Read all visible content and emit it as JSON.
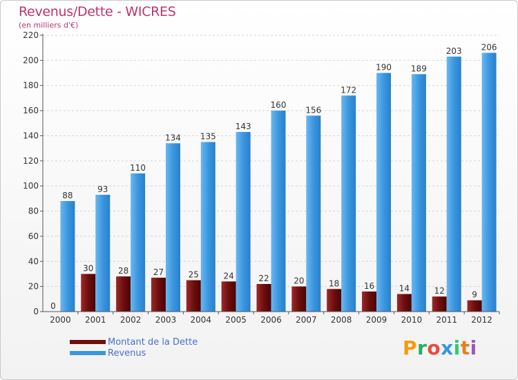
{
  "chart_data": {
    "type": "bar",
    "title": "Revenus/Dette - WICRES",
    "subtitle": "(en milliers d'€)",
    "categories": [
      "2000",
      "2001",
      "2002",
      "2003",
      "2004",
      "2005",
      "2006",
      "2007",
      "2008",
      "2009",
      "2010",
      "2011",
      "2012"
    ],
    "series": [
      {
        "name": "Montant de la Dette",
        "color": "#7a1010",
        "values": [
          0,
          30,
          28,
          27,
          25,
          24,
          22,
          20,
          18,
          16,
          14,
          12,
          9
        ]
      },
      {
        "name": "Revenus",
        "color": "#3b97e0",
        "values": [
          88,
          93,
          110,
          134,
          135,
          143,
          160,
          156,
          172,
          190,
          189,
          203,
          206
        ]
      }
    ],
    "ylim": [
      0,
      220
    ],
    "yticks": [
      0,
      20,
      40,
      60,
      80,
      100,
      120,
      140,
      160,
      180,
      200,
      220
    ],
    "grid": true,
    "legend": "bottom-left"
  },
  "brand": {
    "logo_text": "Proxiti",
    "letter_colors": [
      "#f39c12",
      "#27ae60",
      "#e74c3c",
      "#3498db",
      "#2ecc71",
      "#e67e22",
      "#9b59b6"
    ]
  }
}
